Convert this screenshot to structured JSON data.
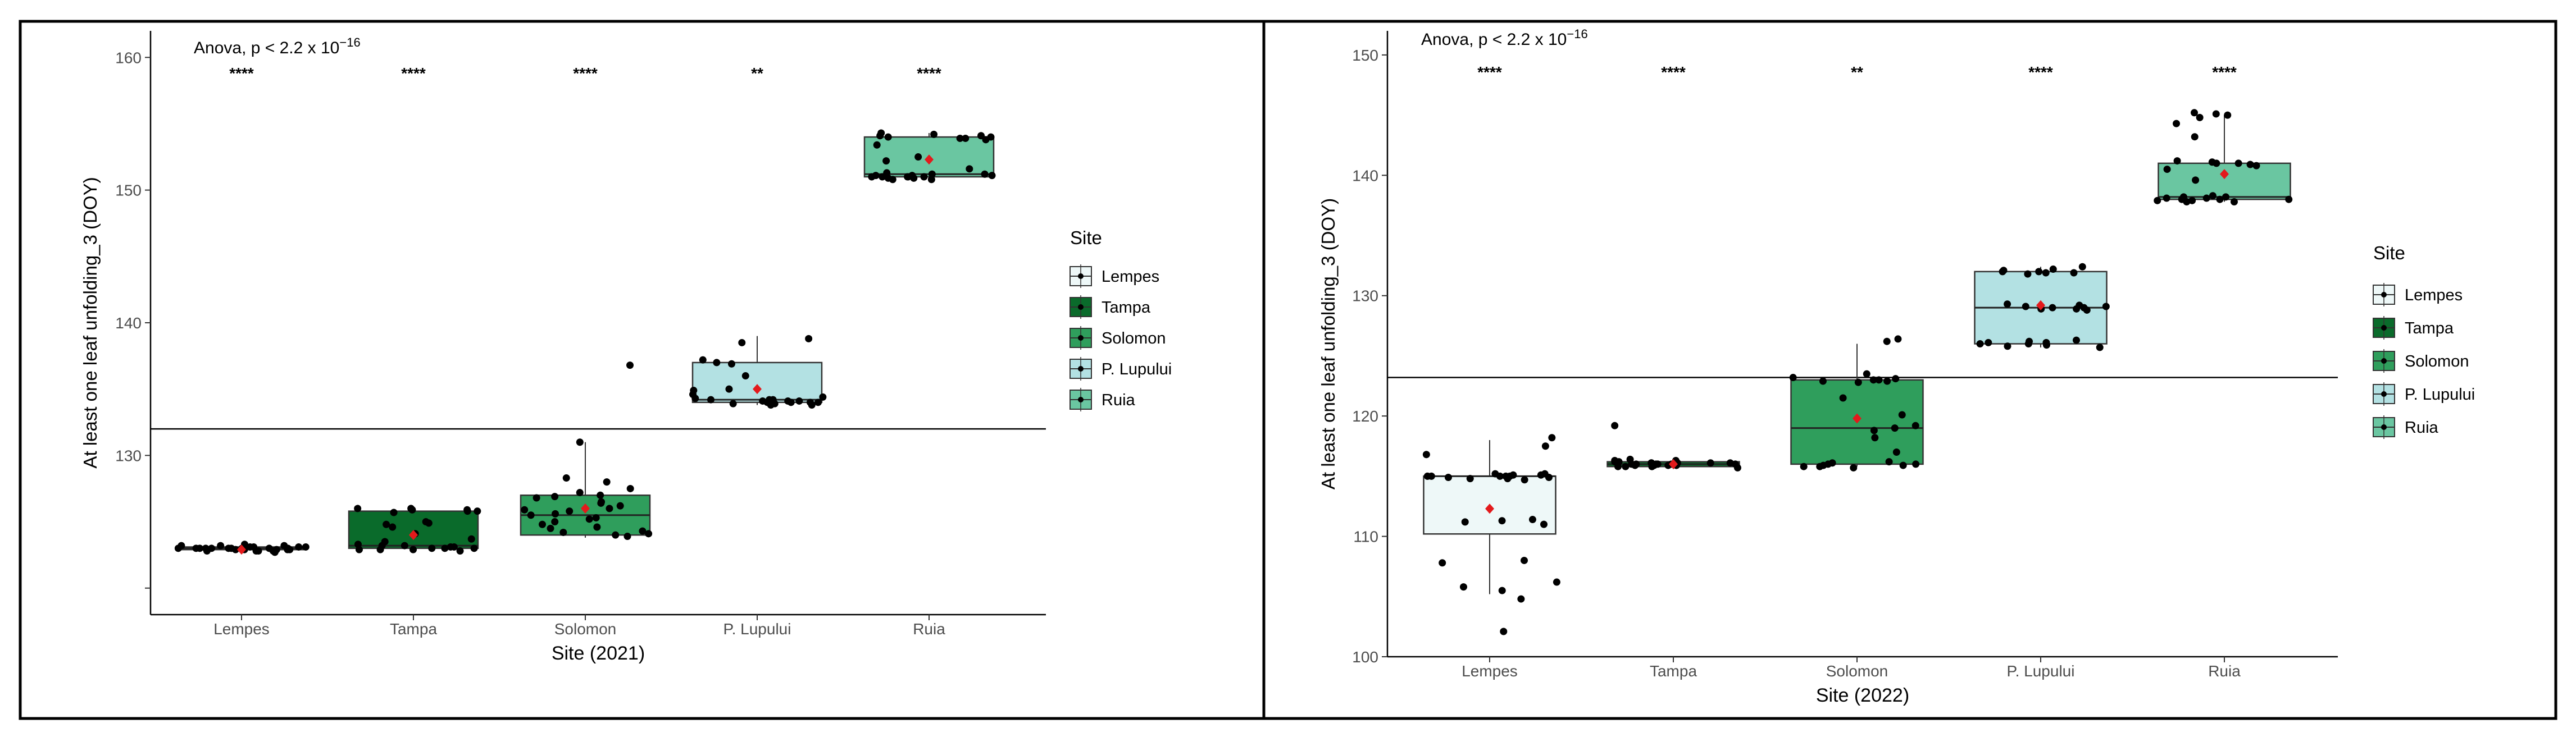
{
  "chart_data": [
    {
      "type": "box",
      "title": "",
      "annotation": {
        "prefix": "Anova, p < 2.2 x 10",
        "exponent": "−16"
      },
      "xlabel": "Site (2021)",
      "ylabel": "At least one leaf unfolding_3 (DOY)",
      "ylim": [
        118,
        162
      ],
      "yticks": [
        120,
        130,
        140,
        150,
        160
      ],
      "ytick_labels": [
        "",
        "130",
        "140",
        "150",
        "160"
      ],
      "reference_line": 132,
      "categories": [
        "Lempes",
        "Tampa",
        "Solomon",
        "P. Lupului",
        "Ruia"
      ],
      "significance": [
        "****",
        "****",
        "****",
        "**",
        "****"
      ],
      "legend": {
        "title": "Site",
        "entries": [
          "Lempes",
          "Tampa",
          "Solomon",
          "P. Lupului",
          "Ruia"
        ]
      },
      "colors": [
        "#eef8f8",
        "#0a6b2b",
        "#2f9e5c",
        "#b3e1e3",
        "#6ac6a1"
      ],
      "mean_color": "#e31a1c",
      "boxes": [
        {
          "site": "Lempes",
          "q1": 122.9,
          "median": 123.0,
          "q3": 123.1,
          "whisker_low": 122.7,
          "whisker_high": 123.3,
          "mean": 122.9,
          "points": [
            123,
            122.8,
            123.1,
            122.9,
            123,
            123.2,
            122.7,
            123,
            123.3,
            122.9,
            123,
            123.1,
            122.8,
            123,
            122.9,
            123.2,
            123,
            122.8,
            123.1,
            123,
            122.9,
            123,
            123.2,
            122.8,
            123.1,
            123,
            122.9,
            123
          ]
        },
        {
          "site": "Tampa",
          "q1": 123.0,
          "median": 123.2,
          "q3": 125.8,
          "whisker_low": 122.8,
          "whisker_high": 126.0,
          "mean": 124.0,
          "points": [
            123,
            122.9,
            123.2,
            123.1,
            122.8,
            123,
            123.3,
            122.9,
            123.1,
            123,
            122.9,
            123.2,
            125.8,
            125.9,
            126,
            125.7,
            125.9,
            126,
            125.8,
            124.8,
            124.6,
            124.9,
            125,
            124.1,
            123.5,
            123.7
          ]
        },
        {
          "site": "Solomon",
          "q1": 124.0,
          "median": 125.5,
          "q3": 127.0,
          "whisker_low": 123.8,
          "whisker_high": 131.0,
          "mean": 126.0,
          "points": [
            124,
            124.2,
            124.5,
            123.9,
            124.1,
            125,
            125.5,
            125.2,
            125.8,
            126,
            126.2,
            126.5,
            127,
            126.8,
            127.2,
            125.3,
            124.8,
            125.6,
            124.3,
            126.4,
            128,
            127.5,
            128.3,
            136.8,
            131,
            126.9,
            124.6,
            125.9
          ]
        },
        {
          "site": "P. Lupului",
          "q1": 134.0,
          "median": 134.2,
          "q3": 137.0,
          "whisker_low": 133.8,
          "whisker_high": 139.0,
          "mean": 135.0,
          "points": [
            134,
            134.1,
            133.9,
            134.2,
            134,
            133.8,
            134.3,
            134.1,
            134,
            133.9,
            134.2,
            134.4,
            134,
            134.1,
            133.8,
            134,
            134.2,
            136.9,
            137,
            137.2,
            138.5,
            138.8,
            136,
            135,
            134.6,
            134.9
          ]
        },
        {
          "site": "Ruia",
          "q1": 151.0,
          "median": 151.2,
          "q3": 154.0,
          "whisker_low": 150.8,
          "whisker_high": 154.3,
          "mean": 152.3,
          "points": [
            151,
            151.1,
            150.9,
            151.2,
            151,
            150.8,
            151.3,
            151.1,
            151,
            150.9,
            151.2,
            151,
            150.8,
            151.1,
            151,
            153.9,
            154,
            154.2,
            154.1,
            153.8,
            154.3,
            154,
            153.9,
            154.1,
            152.2,
            152.5,
            151.6,
            153.4
          ]
        }
      ]
    },
    {
      "type": "box",
      "title": "",
      "annotation": {
        "prefix": "Anova, p < 2.2 x 10",
        "exponent": "−16"
      },
      "xlabel": "Site (2022)",
      "ylabel": "At least one leaf unfolding_3 (DOY)",
      "ylim": [
        100,
        152
      ],
      "yticks": [
        100,
        110,
        120,
        130,
        140,
        150
      ],
      "ytick_labels": [
        "100",
        "110",
        "120",
        "130",
        "140",
        "150"
      ],
      "reference_line": 123.2,
      "categories": [
        "Lempes",
        "Tampa",
        "Solomon",
        "P. Lupului",
        "Ruia"
      ],
      "significance": [
        "****",
        "****",
        "**",
        "****",
        "****"
      ],
      "legend": {
        "title": "Site",
        "entries": [
          "Lempes",
          "Tampa",
          "Solomon",
          "P. Lupului",
          "Ruia"
        ]
      },
      "colors": [
        "#eef8f8",
        "#0a6b2b",
        "#2f9e5c",
        "#b3e1e3",
        "#6ac6a1"
      ],
      "mean_color": "#e31a1c",
      "boxes": [
        {
          "site": "Lempes",
          "q1": 110.2,
          "median": 115.0,
          "q3": 115.0,
          "whisker_low": 105.2,
          "whisker_high": 118.0,
          "mean": 112.3,
          "points": [
            115,
            114.8,
            115.1,
            114.9,
            115.2,
            115,
            114.7,
            115,
            115.1,
            114.9,
            115,
            115.2,
            114.8,
            115,
            118.2,
            117.5,
            116.8,
            111.4,
            111,
            111.2,
            107.8,
            106.2,
            105.5,
            104.8,
            102.1,
            108,
            111.3,
            105.8
          ]
        },
        {
          "site": "Tampa",
          "q1": 115.8,
          "median": 116.0,
          "q3": 116.2,
          "whisker_low": 115.6,
          "whisker_high": 116.4,
          "mean": 116.0,
          "points": [
            116,
            115.9,
            116.1,
            116.2,
            115.8,
            116,
            116.3,
            115.9,
            116.1,
            116,
            115.8,
            116.2,
            116,
            116.1,
            115.9,
            116,
            116.4,
            115.7,
            116.1,
            116,
            115.9,
            119.2,
            116.3,
            116,
            115.8,
            116.1
          ]
        },
        {
          "site": "Solomon",
          "q1": 116.0,
          "median": 119.0,
          "q3": 123.0,
          "whisker_low": 115.8,
          "whisker_high": 126.0,
          "mean": 119.8,
          "points": [
            115.8,
            115.9,
            116,
            116.1,
            115.7,
            115.8,
            116,
            115.9,
            116.2,
            123,
            122.9,
            123.1,
            122.8,
            123,
            122.9,
            123.2,
            119,
            118.8,
            119.2,
            120.1,
            117,
            126.2,
            126.4,
            123.5,
            121.5,
            118.2
          ]
        },
        {
          "site": "P. Lupului",
          "q1": 126.0,
          "median": 129.0,
          "q3": 132.0,
          "whisker_low": 125.7,
          "whisker_high": 132.4,
          "mean": 129.2,
          "points": [
            126,
            125.8,
            126.1,
            125.9,
            126.2,
            126,
            125.7,
            126.1,
            129,
            128.9,
            129.1,
            129.2,
            128.8,
            129,
            129.1,
            128.9,
            132,
            131.9,
            132.1,
            132.2,
            131.8,
            132,
            132.4,
            131.9,
            126.3,
            129.3
          ]
        },
        {
          "site": "Ruia",
          "q1": 138.0,
          "median": 138.2,
          "q3": 141.0,
          "whisker_low": 137.8,
          "whisker_high": 145.0,
          "mean": 140.1,
          "points": [
            138,
            137.9,
            138.1,
            138.2,
            137.8,
            138,
            138.3,
            137.9,
            138.1,
            138,
            137.8,
            138.2,
            141,
            140.9,
            141.1,
            141.2,
            140.8,
            141,
            145.2,
            145,
            144.8,
            145.1,
            144.3,
            140.5,
            139.6,
            143.2
          ]
        }
      ]
    }
  ]
}
